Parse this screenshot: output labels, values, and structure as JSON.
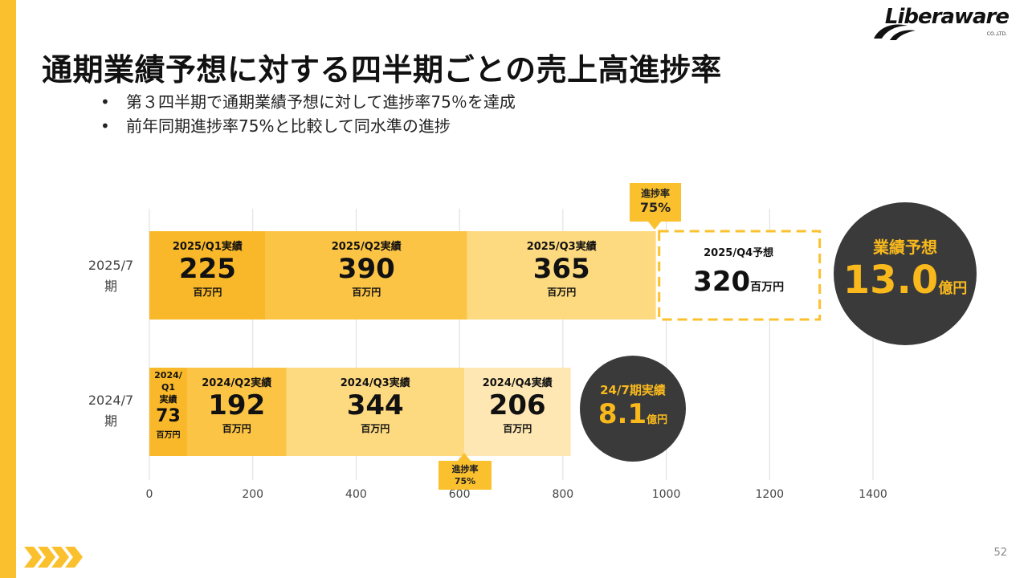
{
  "logo": {
    "text": "Liberaware",
    "sub": "CO.,LTD."
  },
  "title": "通期業績予想に対する四半期ごとの売上高進捗率",
  "bullets": [
    "第３四半期で通期業績予想に対して進捗率75％を達成",
    "前年同期進捗率75%と比較して同水準の進捗"
  ],
  "page_number": "52",
  "colors": {
    "accent": "#FBC02D",
    "q1": "#F9B829",
    "q2": "#FBC445",
    "q3": "#FDD980",
    "q4": "#FEE7B3",
    "circle": "#3a3a3a"
  },
  "chart_data": {
    "type": "bar",
    "orientation": "horizontal",
    "stacked": true,
    "xlim": [
      0,
      1400
    ],
    "x_ticks": [
      "0",
      "200",
      "400",
      "600",
      "800",
      "1000",
      "1200",
      "1400"
    ],
    "grid": true,
    "rows": [
      {
        "label_line1": "2025/7",
        "label_line2": "期",
        "segments": [
          {
            "name": "2025/Q1実績",
            "value": 225,
            "display": "225",
            "unit": "百万円"
          },
          {
            "name": "2025/Q2実績",
            "value": 390,
            "display": "390",
            "unit": "百万円"
          },
          {
            "name": "2025/Q3実績",
            "value": 365,
            "display": "365",
            "unit": "百万円"
          },
          {
            "name": "2025/Q4予想",
            "value": 320,
            "display": "320",
            "unit": "百万円",
            "forecast": true
          }
        ],
        "total_label": "業績予想",
        "total_value": "13.0",
        "total_unit": "億円",
        "progress_label": "進捗率",
        "progress_value": "75%"
      },
      {
        "label_line1": "2024/7",
        "label_line2": "期",
        "segments": [
          {
            "name_lines": [
              "2024/",
              "Q1",
              "実績"
            ],
            "value": 73,
            "display": "73",
            "unit": "百万円"
          },
          {
            "name": "2024/Q2実績",
            "value": 192,
            "display": "192",
            "unit": "百万円"
          },
          {
            "name": "2024/Q3実績",
            "value": 344,
            "display": "344",
            "unit": "百万円"
          },
          {
            "name": "2024/Q4実績",
            "value": 206,
            "display": "206",
            "unit": "百万円"
          }
        ],
        "total_label": "24/7期実績",
        "total_value": "8.1",
        "total_unit": "億円",
        "progress_label": "進捗率",
        "progress_value": "75%"
      }
    ]
  }
}
